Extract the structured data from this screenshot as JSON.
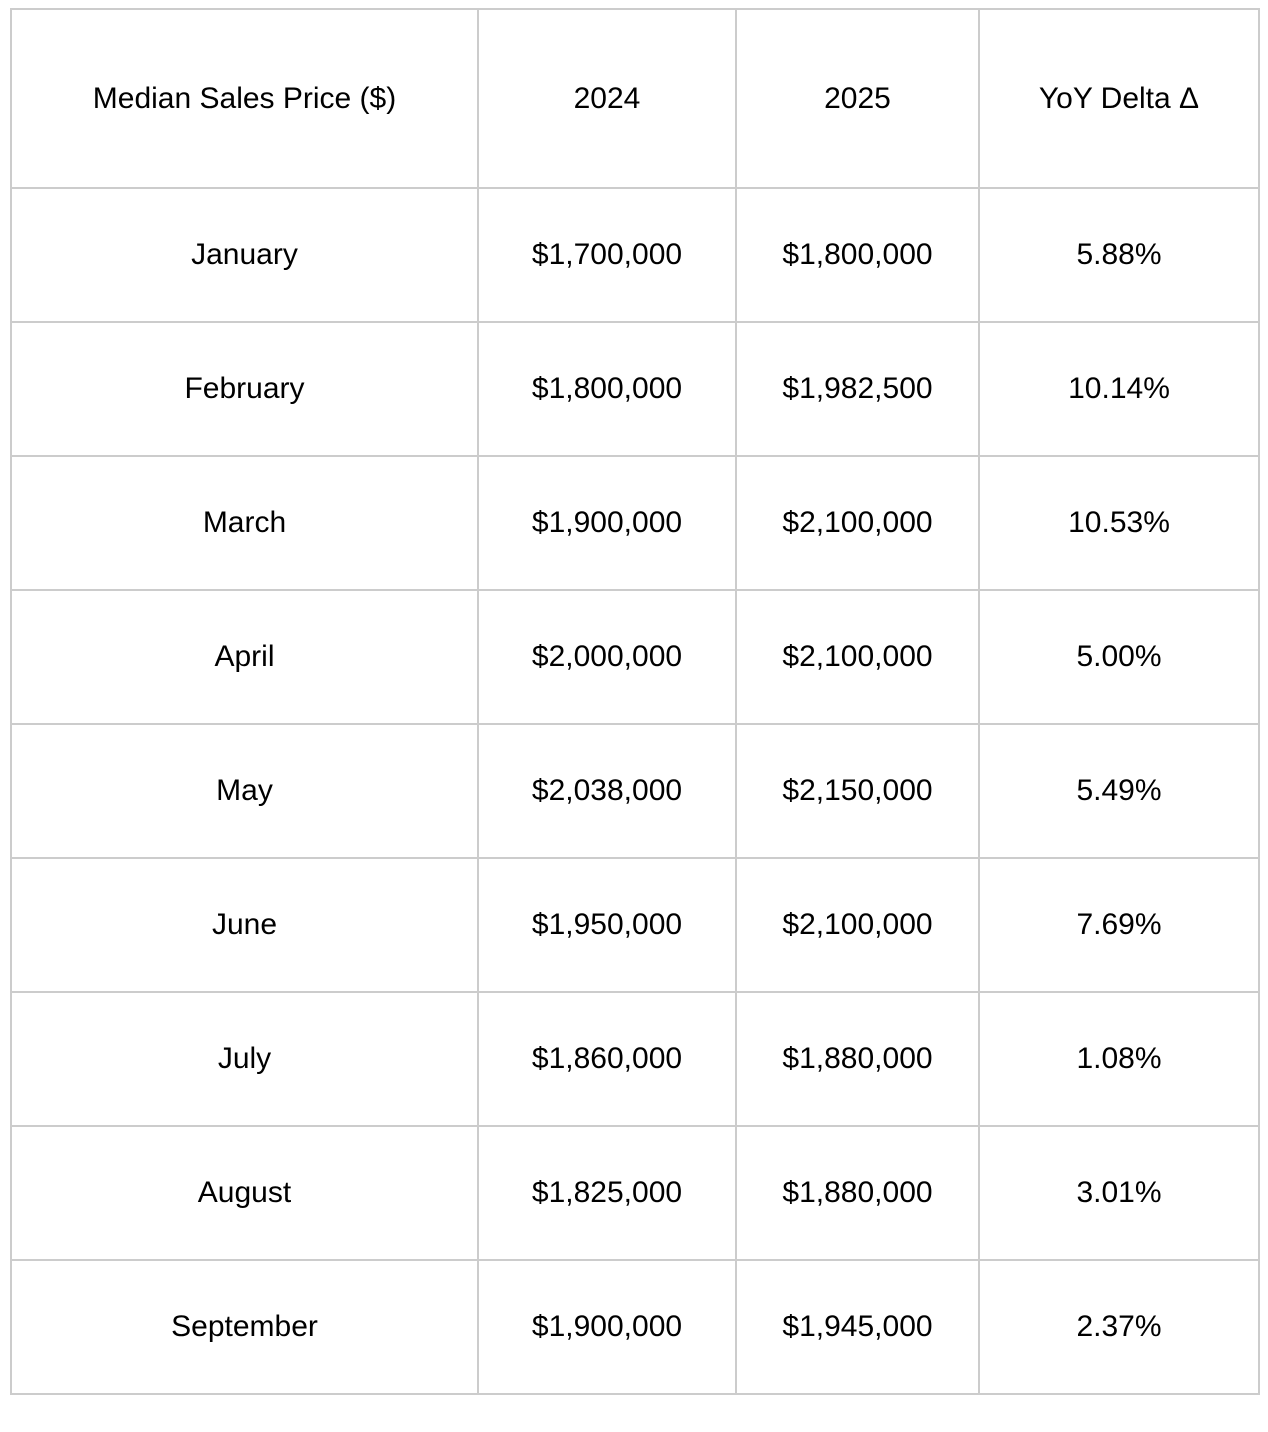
{
  "table": {
    "headers": [
      "Median Sales Price ($)",
      "2024",
      "2025",
      "YoY Delta Δ"
    ],
    "rows": [
      {
        "month": "January",
        "y2024": "$1,700,000",
        "y2025": "$1,800,000",
        "delta": "5.88%"
      },
      {
        "month": "February",
        "y2024": "$1,800,000",
        "y2025": "$1,982,500",
        "delta": "10.14%"
      },
      {
        "month": "March",
        "y2024": "$1,900,000",
        "y2025": "$2,100,000",
        "delta": "10.53%"
      },
      {
        "month": "April",
        "y2024": "$2,000,000",
        "y2025": "$2,100,000",
        "delta": "5.00%"
      },
      {
        "month": "May",
        "y2024": "$2,038,000",
        "y2025": "$2,150,000",
        "delta": "5.49%"
      },
      {
        "month": "June",
        "y2024": "$1,950,000",
        "y2025": "$2,100,000",
        "delta": "7.69%"
      },
      {
        "month": "July",
        "y2024": "$1,860,000",
        "y2025": "$1,880,000",
        "delta": "1.08%"
      },
      {
        "month": "August",
        "y2024": "$1,825,000",
        "y2025": "$1,880,000",
        "delta": "3.01%"
      },
      {
        "month": "September",
        "y2024": "$1,900,000",
        "y2025": "$1,945,000",
        "delta": "2.37%"
      }
    ]
  },
  "colors": {
    "border": "#cccccc",
    "text": "#000000",
    "background": "#ffffff"
  },
  "chart_data": {
    "type": "table",
    "title": "Median Sales Price ($)",
    "columns": [
      "Median Sales Price ($)",
      "2024",
      "2025",
      "YoY Delta Δ"
    ],
    "categories": [
      "January",
      "February",
      "March",
      "April",
      "May",
      "June",
      "July",
      "August",
      "September"
    ],
    "series": [
      {
        "name": "2024",
        "values": [
          1700000,
          1800000,
          1900000,
          2000000,
          2038000,
          1950000,
          1860000,
          1825000,
          1900000
        ]
      },
      {
        "name": "2025",
        "values": [
          1800000,
          1982500,
          2100000,
          2100000,
          2150000,
          2100000,
          1880000,
          1880000,
          1945000
        ]
      },
      {
        "name": "YoY Delta Δ (%)",
        "values": [
          5.88,
          10.14,
          10.53,
          5.0,
          5.49,
          7.69,
          1.08,
          3.01,
          2.37
        ]
      }
    ],
    "layout": {
      "grid": "full-borders",
      "header_row": true,
      "cell_alignment": "center"
    }
  }
}
